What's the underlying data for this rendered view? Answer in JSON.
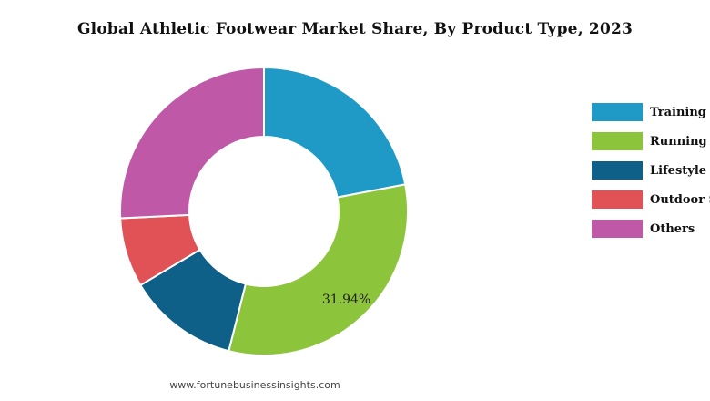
{
  "chart_data": {
    "type": "pie",
    "title": "Global Athletic Footwear Market Share, By Product Type, 2023",
    "series": [
      {
        "name": "Training Shoes",
        "value": 22.0,
        "color": "#1f9ac7"
      },
      {
        "name": "Running Shoes",
        "value": 31.94,
        "color": "#8cc43c"
      },
      {
        "name": "Lifestyle Shoes",
        "value": 12.5,
        "color": "#0f6088"
      },
      {
        "name": "Outdoor Shoes",
        "value": 7.8,
        "color": "#e05256"
      },
      {
        "name": "Others",
        "value": 25.76,
        "color": "#c058a8"
      }
    ],
    "data_labels": [
      {
        "series": "Running Shoes",
        "text": "31.94%"
      }
    ],
    "legend_position": "right",
    "hole": true
  },
  "legend_labels": [
    "Training S",
    "Running S",
    "Lifestyle S",
    "Outdoor S",
    "Others"
  ],
  "source": "www.fortunebusinessinsights.com"
}
